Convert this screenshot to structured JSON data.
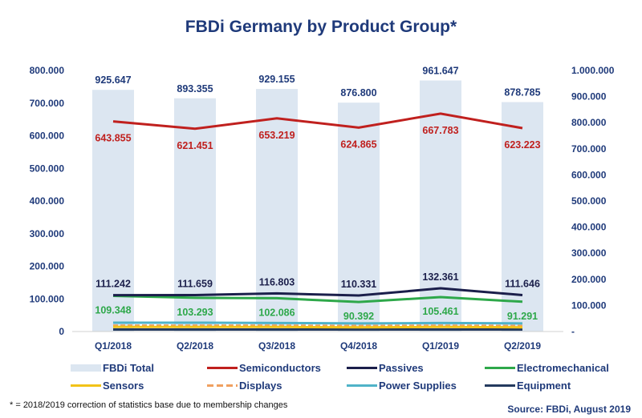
{
  "chart_data": {
    "type": "bar+line",
    "title": "FBDi Germany by Product Group*",
    "categories": [
      "Q1/2018",
      "Q2/2018",
      "Q3/2018",
      "Q4/2018",
      "Q1/2019",
      "Q2/2019"
    ],
    "left_axis": {
      "ylim": [
        0,
        800000
      ],
      "ticks": [
        "0",
        "100.000",
        "200.000",
        "300.000",
        "400.000",
        "500.000",
        "600.000",
        "700.000",
        "800.000"
      ]
    },
    "right_axis": {
      "ylim": [
        0,
        1000000
      ],
      "ticks": [
        "-",
        "100.000",
        "200.000",
        "300.000",
        "400.000",
        "500.000",
        "600.000",
        "700.000",
        "800.000",
        "900.000",
        "1.000.000"
      ]
    },
    "series": [
      {
        "name": "FBDi Total",
        "kind": "bar",
        "axis": "right",
        "color": "#dce6f1",
        "values": [
          925647,
          893355,
          929155,
          876800,
          961647,
          878785
        ],
        "labels": [
          "925.647",
          "893.355",
          "929.155",
          "876.800",
          "961.647",
          "878.785"
        ],
        "label_color": "#1f3a7a"
      },
      {
        "name": "Semiconductors",
        "kind": "line",
        "axis": "left",
        "color": "#c0201e",
        "values": [
          643855,
          621451,
          653219,
          624865,
          667783,
          623223
        ],
        "labels": [
          "643.855",
          "621.451",
          "653.219",
          "624.865",
          "667.783",
          "623.223"
        ],
        "label_color": "#c0201e"
      },
      {
        "name": "Passives",
        "kind": "line",
        "axis": "left",
        "color": "#1b1f4b",
        "values": [
          111242,
          111659,
          116803,
          110331,
          132361,
          111646
        ],
        "labels": [
          "111.242",
          "111.659",
          "116.803",
          "110.331",
          "132.361",
          "111.646"
        ],
        "label_color": "#1b1f4b"
      },
      {
        "name": "Electromechanical",
        "kind": "line",
        "axis": "left",
        "color": "#2ea84a",
        "values": [
          109348,
          103293,
          102086,
          90392,
          105461,
          91291
        ],
        "labels": [
          "109.348",
          "103.293",
          "102.086",
          "90.392",
          "105.461",
          "91.291"
        ],
        "label_color": "#2ea84a"
      },
      {
        "name": "Sensors",
        "kind": "line",
        "axis": "left",
        "color": "#f2c318",
        "values": [
          14000,
          14000,
          14000,
          13000,
          14000,
          13000
        ]
      },
      {
        "name": "Displays",
        "kind": "line",
        "axis": "left",
        "color": "#f0a060",
        "dashed": true,
        "values": [
          18000,
          18000,
          18000,
          17000,
          18000,
          17000
        ]
      },
      {
        "name": "Power Supplies",
        "kind": "line",
        "axis": "left",
        "color": "#4fb3c8",
        "values": [
          27000,
          27000,
          26000,
          25000,
          26000,
          25000
        ]
      },
      {
        "name": "Equipment",
        "kind": "line",
        "axis": "left",
        "color": "#243a5e",
        "values": [
          6000,
          6000,
          6000,
          6000,
          6000,
          6000
        ]
      }
    ],
    "legend_position": "bottom",
    "grid": false
  },
  "footnote": "* = 2018/2019 correction of statistics base due to membership changes",
  "source": "Source: FBDi, August 2019"
}
